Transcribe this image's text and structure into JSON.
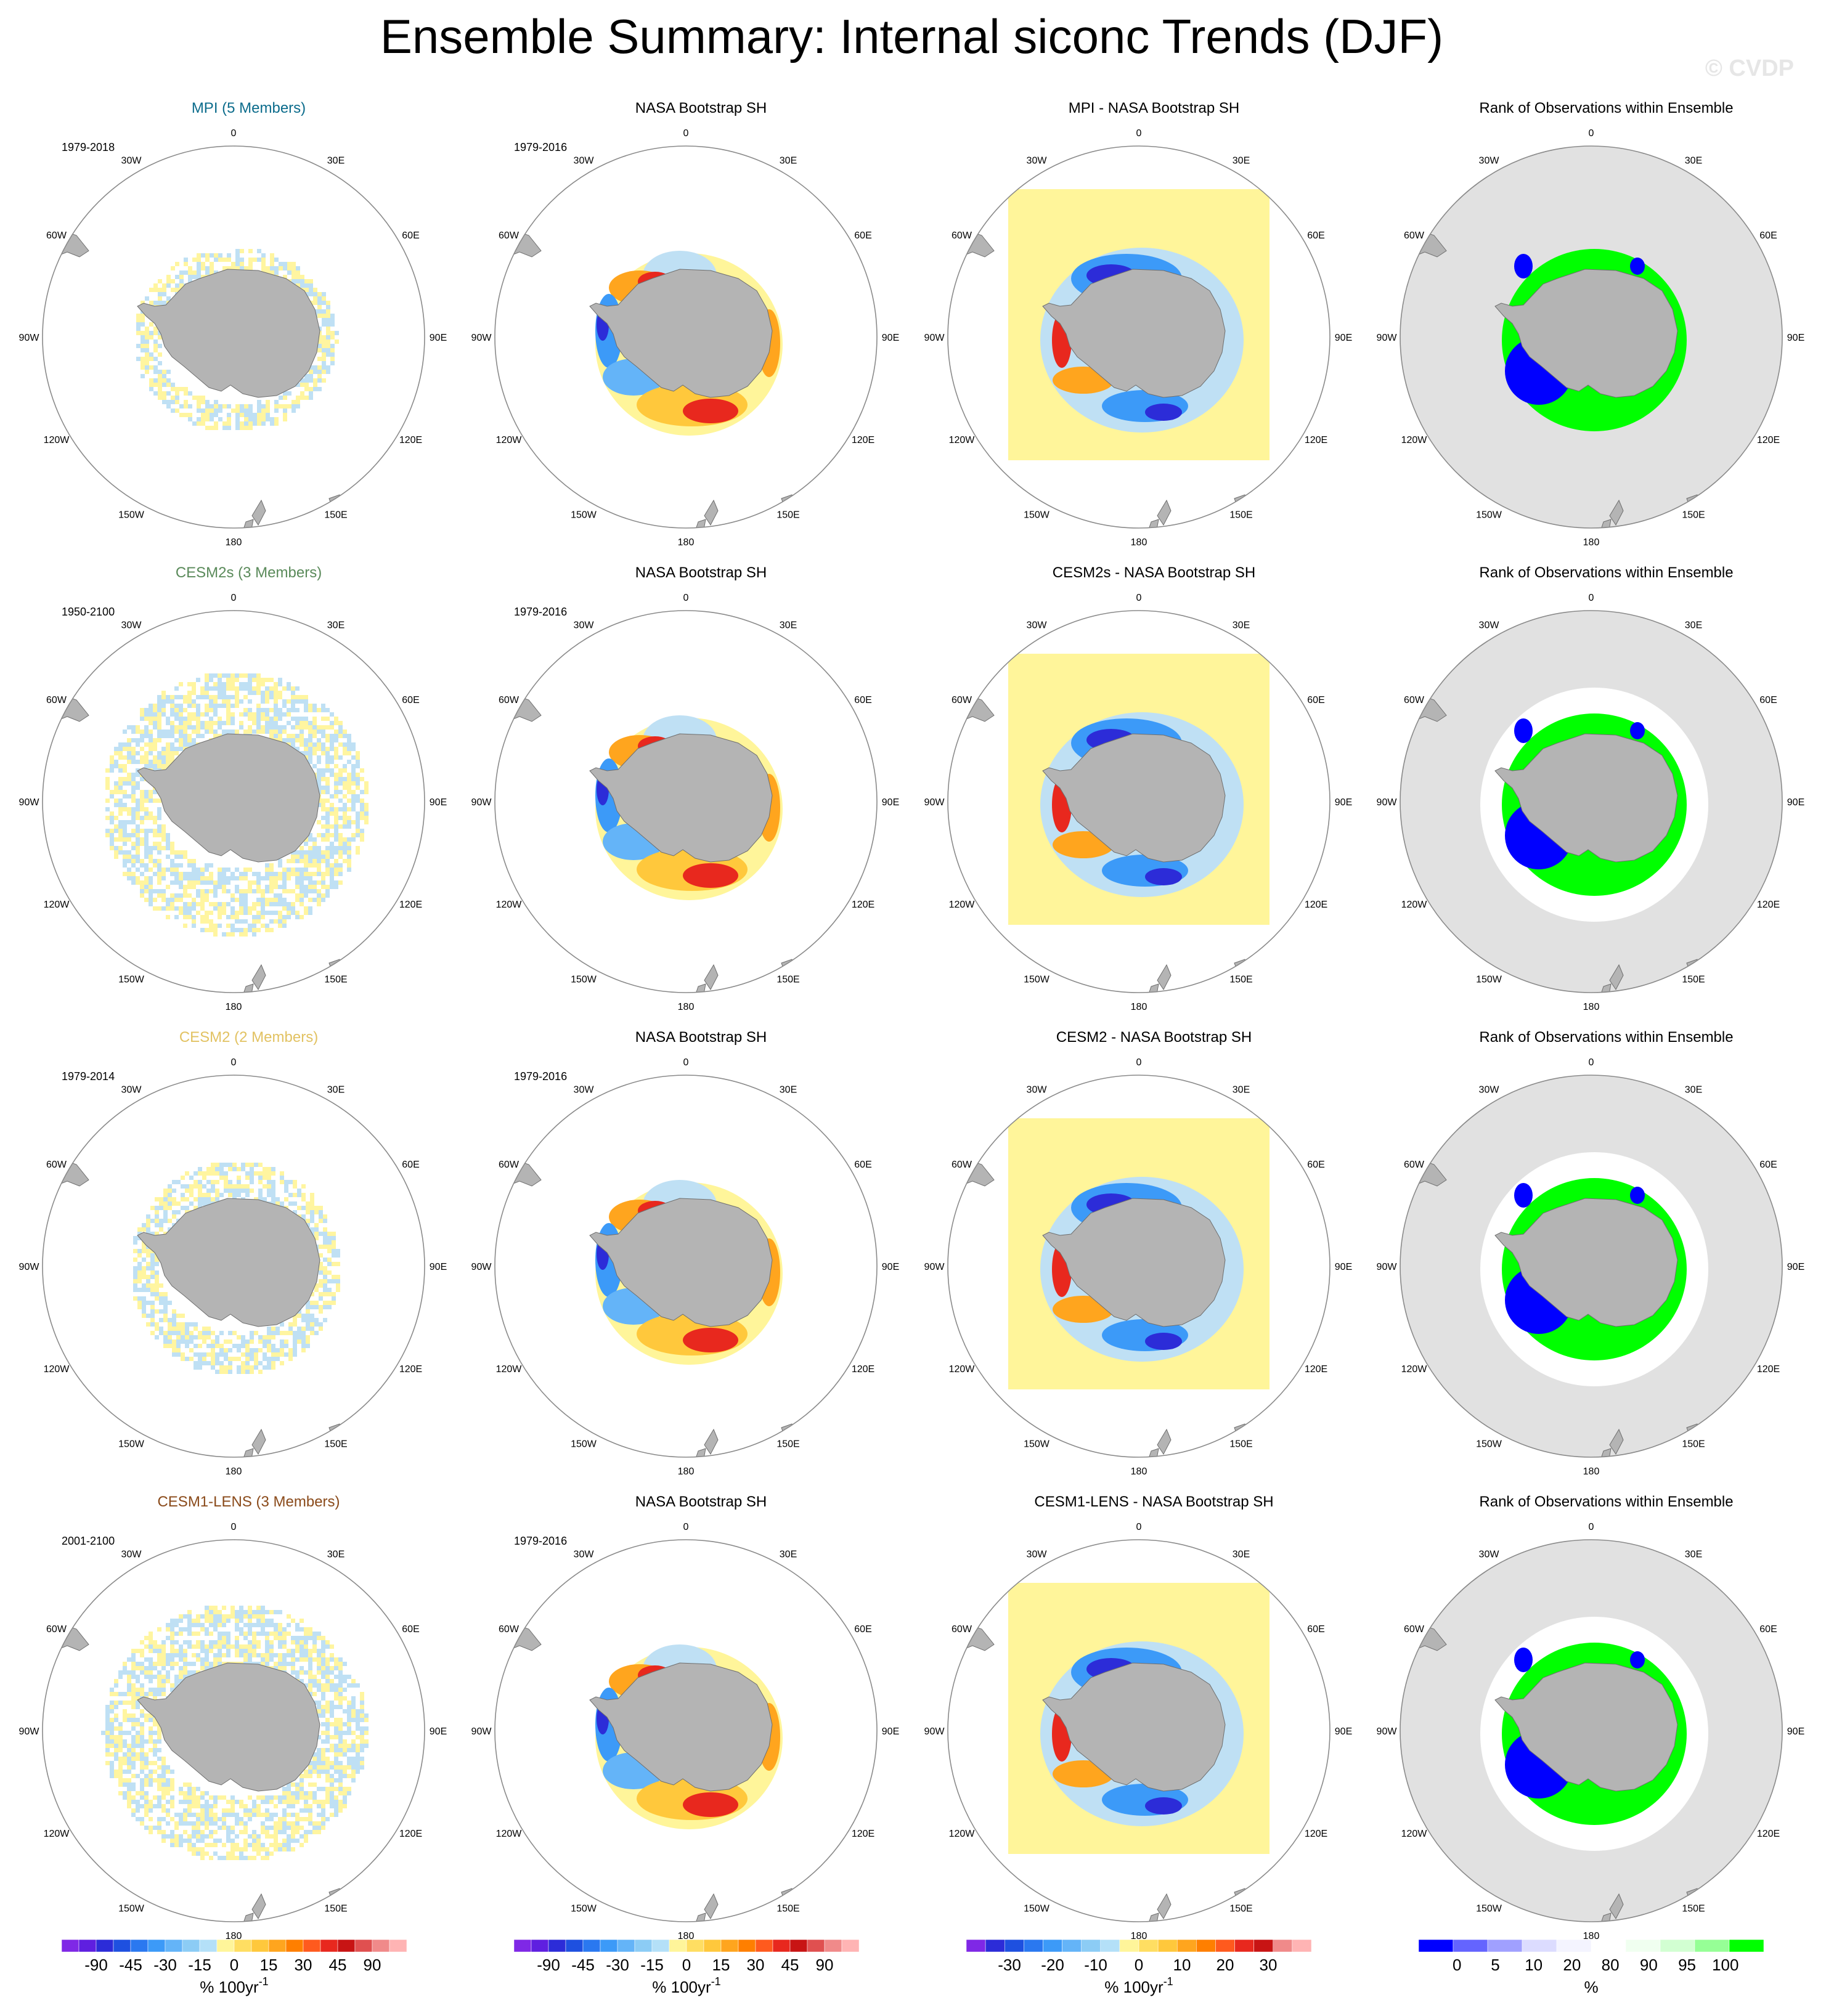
{
  "title": "Ensemble Summary: Internal siconc Trends (DJF)",
  "watermark": "© CVDP",
  "map_labels": [
    "0",
    "30E",
    "60E",
    "90E",
    "120E",
    "150E",
    "180",
    "150W",
    "120W",
    "90W",
    "60W",
    "30W"
  ],
  "rows": [
    {
      "panels": [
        {
          "title": "MPI (5 Members)",
          "title_color": "#0c6c8c",
          "period": "1979-2018",
          "kind": "model"
        },
        {
          "title": "NASA Bootstrap SH",
          "title_color": "#000000",
          "period": "1979-2016",
          "kind": "obs"
        },
        {
          "title": "MPI - NASA Bootstrap SH",
          "title_color": "#000000",
          "period": "",
          "kind": "diff"
        },
        {
          "title": "Rank of Observations within Ensemble",
          "title_color": "#000000",
          "period": "",
          "kind": "rank"
        }
      ]
    },
    {
      "panels": [
        {
          "title": "CESM2s (3 Members)",
          "title_color": "#5a8a5a",
          "period": "1950-2100",
          "kind": "model"
        },
        {
          "title": "NASA Bootstrap SH",
          "title_color": "#000000",
          "period": "1979-2016",
          "kind": "obs"
        },
        {
          "title": "CESM2s - NASA Bootstrap SH",
          "title_color": "#000000",
          "period": "",
          "kind": "diff"
        },
        {
          "title": "Rank of Observations within Ensemble",
          "title_color": "#000000",
          "period": "",
          "kind": "rank"
        }
      ]
    },
    {
      "panels": [
        {
          "title": "CESM2 (2 Members)",
          "title_color": "#e2c262",
          "period": "1979-2014",
          "kind": "model"
        },
        {
          "title": "NASA Bootstrap SH",
          "title_color": "#000000",
          "period": "1979-2016",
          "kind": "obs"
        },
        {
          "title": "CESM2 - NASA Bootstrap SH",
          "title_color": "#000000",
          "period": "",
          "kind": "diff"
        },
        {
          "title": "Rank of Observations within Ensemble",
          "title_color": "#000000",
          "period": "",
          "kind": "rank"
        }
      ]
    },
    {
      "panels": [
        {
          "title": "CESM1-LENS (3 Members)",
          "title_color": "#8a4a1a",
          "period": "2001-2100",
          "kind": "model"
        },
        {
          "title": "NASA Bootstrap SH",
          "title_color": "#000000",
          "period": "1979-2016",
          "kind": "obs"
        },
        {
          "title": "CESM1-LENS - NASA Bootstrap SH",
          "title_color": "#000000",
          "period": "",
          "kind": "diff"
        },
        {
          "title": "Rank of Observations within Ensemble",
          "title_color": "#000000",
          "period": "",
          "kind": "rank"
        }
      ]
    }
  ],
  "colorbars": [
    {
      "colors": [
        "#7f28e6",
        "#5f1fe0",
        "#2c2cd8",
        "#1e50e0",
        "#2a78f0",
        "#3c9af8",
        "#64b4f8",
        "#8cccf5",
        "#b4e0f8",
        "#fff59a",
        "#ffde62",
        "#ffc83c",
        "#ffa51e",
        "#ff7f00",
        "#ff5a1e",
        "#e8281e",
        "#c81414",
        "#e05050",
        "#f08a8a",
        "#ffb4b4"
      ],
      "ticks": [
        "-90",
        "-45",
        "-30",
        "-15",
        "0",
        "15",
        "30",
        "45",
        "90"
      ],
      "unit": "% 100yr",
      "unit_sup": "-1"
    },
    {
      "colors": [
        "#7f28e6",
        "#5f1fe0",
        "#2c2cd8",
        "#1e50e0",
        "#2a78f0",
        "#3c9af8",
        "#64b4f8",
        "#8cccf5",
        "#b4e0f8",
        "#fff59a",
        "#ffde62",
        "#ffc83c",
        "#ffa51e",
        "#ff7f00",
        "#ff5a1e",
        "#e8281e",
        "#c81414",
        "#e05050",
        "#f08a8a",
        "#ffb4b4"
      ],
      "ticks": [
        "-90",
        "-45",
        "-30",
        "-15",
        "0",
        "15",
        "30",
        "45",
        "90"
      ],
      "unit": "% 100yr",
      "unit_sup": "-1"
    },
    {
      "colors": [
        "#7f28e6",
        "#2c2cd8",
        "#1e50e0",
        "#2a78f0",
        "#3c9af8",
        "#64b4f8",
        "#8cccf5",
        "#b4e0f8",
        "#fff59a",
        "#ffde62",
        "#ffc83c",
        "#ffa51e",
        "#ff7f00",
        "#ff5a1e",
        "#e8281e",
        "#c81414",
        "#f08a8a",
        "#ffb4b4"
      ],
      "ticks": [
        "-30",
        "-20",
        "-10",
        "0",
        "10",
        "20",
        "30"
      ],
      "unit": "% 100yr",
      "unit_sup": "-1"
    },
    {
      "colors": [
        "#0000ff",
        "#6464ff",
        "#a0a0ff",
        "#dcdcff",
        "#f4f4ff",
        "#ffffff",
        "#f0fff0",
        "#d2ffd2",
        "#96ff96",
        "#00ff00"
      ],
      "ticks": [
        "0",
        "5",
        "10",
        "20",
        "80",
        "90",
        "95",
        "100"
      ],
      "unit": "%",
      "unit_sup": ""
    }
  ]
}
